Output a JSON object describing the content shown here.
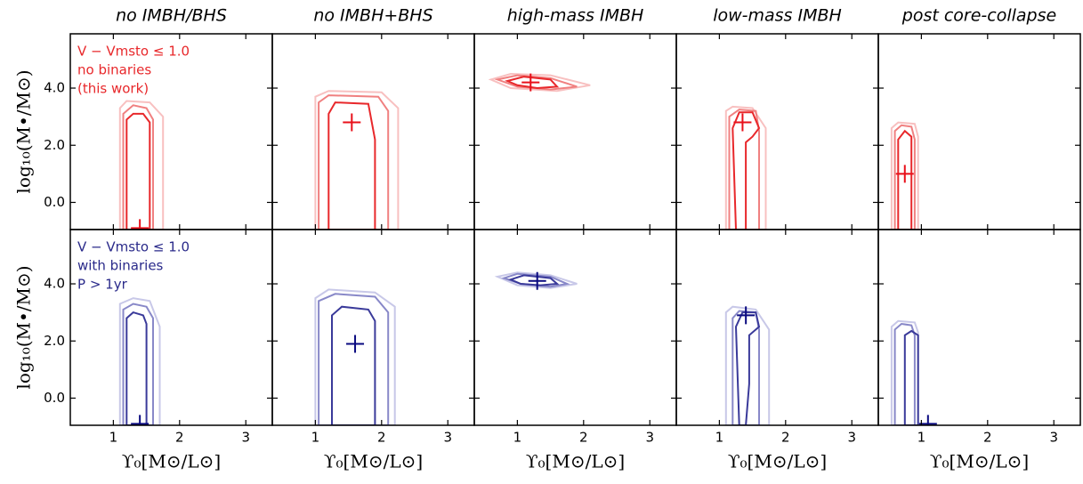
{
  "chart_data": [
    {
      "type": "contour",
      "title": "no IMBH/BHS",
      "ylabel": "log₁₀(M•/M⊙)",
      "annotations": [
        {
          "text": "V − Vmsto ≤ 1.0",
          "color": "#e8282b"
        },
        {
          "text": "no binaries",
          "color": "#e8282b"
        },
        {
          "text": "(this work)",
          "color": "#e8282b"
        }
      ],
      "xlim": [
        0.35,
        3.4
      ],
      "ylim": [
        -0.95,
        5.9
      ],
      "xticks": [
        1,
        2,
        3
      ],
      "yticks": [
        {
          "value": 4,
          "label": "4.0"
        },
        {
          "value": 2,
          "label": "2.0"
        },
        {
          "value": 0,
          "label": "0.0"
        }
      ],
      "contours": [
        {
          "color": "#f8c0c0",
          "x": [
            1.1,
            1.1,
            1.2,
            1.55,
            1.75,
            1.75
          ],
          "y": [
            -0.95,
            3.3,
            3.55,
            3.5,
            3.0,
            -0.95
          ]
        },
        {
          "color": "#f08080",
          "x": [
            1.15,
            1.15,
            1.3,
            1.5,
            1.6,
            1.6
          ],
          "y": [
            -0.95,
            3.1,
            3.4,
            3.3,
            2.9,
            -0.95
          ]
        },
        {
          "color": "#e8282b",
          "x": [
            1.2,
            1.2,
            1.3,
            1.45,
            1.55,
            1.55
          ],
          "y": [
            -0.95,
            2.9,
            3.1,
            3.1,
            2.8,
            -0.95
          ]
        }
      ],
      "marker": {
        "x": 1.4,
        "y": -0.9,
        "color": "#e8101a"
      }
    },
    {
      "type": "contour",
      "title": "no IMBH+BHS",
      "xlim": [
        0.35,
        3.4
      ],
      "ylim": [
        -0.95,
        5.9
      ],
      "xticks": [
        1,
        2,
        3
      ],
      "yticks": [
        4,
        2,
        0
      ],
      "contours": [
        {
          "color": "#f8c0c0",
          "x": [
            1.0,
            1.0,
            1.2,
            2.0,
            2.25,
            2.25
          ],
          "y": [
            -0.95,
            3.7,
            3.9,
            3.85,
            3.3,
            -0.95
          ]
        },
        {
          "color": "#f08080",
          "x": [
            1.05,
            1.05,
            1.2,
            1.95,
            2.1,
            2.1
          ],
          "y": [
            -0.95,
            3.5,
            3.75,
            3.7,
            3.2,
            -0.95
          ]
        },
        {
          "color": "#e8282b",
          "x": [
            1.2,
            1.2,
            1.3,
            1.8,
            1.9,
            1.9
          ],
          "y": [
            -0.95,
            3.1,
            3.5,
            3.45,
            2.2,
            -0.95
          ]
        }
      ],
      "marker": {
        "x": 1.55,
        "y": 2.8,
        "color": "#e8101a"
      }
    },
    {
      "type": "contour",
      "title": "high-mass IMBH",
      "xlim": [
        0.35,
        3.4
      ],
      "ylim": [
        -0.95,
        5.9
      ],
      "xticks": [
        1,
        2,
        3
      ],
      "yticks": [
        4,
        2,
        0
      ],
      "contours": [
        {
          "color": "#f8c0c0",
          "x": [
            0.6,
            0.9,
            1.5,
            2.1,
            1.6,
            0.9
          ],
          "y": [
            4.3,
            4.5,
            4.45,
            4.1,
            3.9,
            4.0
          ]
        },
        {
          "color": "#f08080",
          "x": [
            0.7,
            1.0,
            1.5,
            1.9,
            1.5,
            1.0
          ],
          "y": [
            4.3,
            4.45,
            4.35,
            4.05,
            3.95,
            4.05
          ]
        },
        {
          "color": "#e8282b",
          "x": [
            0.85,
            1.1,
            1.5,
            1.6,
            1.3,
            1.0
          ],
          "y": [
            4.25,
            4.4,
            4.3,
            4.05,
            4.0,
            4.1
          ]
        }
      ],
      "marker": {
        "x": 1.2,
        "y": 4.2,
        "color": "#e8101a"
      }
    },
    {
      "type": "contour",
      "title": "low-mass IMBH",
      "xlim": [
        0.35,
        3.4
      ],
      "ylim": [
        -0.95,
        5.9
      ],
      "xticks": [
        1,
        2,
        3
      ],
      "yticks": [
        4,
        2,
        0
      ],
      "contours": [
        {
          "color": "#f8c0c0",
          "x": [
            1.1,
            1.1,
            1.2,
            1.5,
            1.7,
            1.7
          ],
          "y": [
            -0.95,
            3.2,
            3.35,
            3.3,
            2.6,
            -0.95
          ]
        },
        {
          "color": "#f08080",
          "x": [
            1.15,
            1.15,
            1.3,
            1.55,
            1.6,
            1.6
          ],
          "y": [
            -0.95,
            3.0,
            3.25,
            3.2,
            2.5,
            -0.95
          ]
        },
        {
          "color": "#e8282b",
          "x": [
            1.25,
            1.2,
            1.3,
            1.5,
            1.6,
            1.5,
            1.4,
            1.4
          ],
          "y": [
            -0.95,
            2.6,
            3.15,
            3.15,
            2.6,
            2.3,
            2.1,
            -0.95
          ]
        }
      ],
      "marker": {
        "x": 1.35,
        "y": 2.8,
        "color": "#e8101a"
      }
    },
    {
      "type": "contour",
      "title": "post core-collapse",
      "xlim": [
        0.35,
        3.4
      ],
      "ylim": [
        -0.95,
        5.9
      ],
      "xticks": [
        1,
        2,
        3
      ],
      "yticks": [
        4,
        2,
        0
      ],
      "contours": [
        {
          "color": "#f8c0c0",
          "x": [
            0.55,
            0.55,
            0.65,
            0.9,
            0.95,
            0.95
          ],
          "y": [
            -0.95,
            2.6,
            2.8,
            2.75,
            2.3,
            -0.95
          ]
        },
        {
          "color": "#f08080",
          "x": [
            0.6,
            0.6,
            0.7,
            0.85,
            0.9,
            0.9
          ],
          "y": [
            -0.95,
            2.5,
            2.7,
            2.65,
            2.2,
            -0.95
          ]
        },
        {
          "color": "#e8282b",
          "x": [
            0.65,
            0.65,
            0.75,
            0.85,
            0.85
          ],
          "y": [
            -0.95,
            2.2,
            2.5,
            2.3,
            -0.95
          ]
        }
      ],
      "marker": {
        "x": 0.75,
        "y": 1.0,
        "color": "#e8101a"
      }
    },
    {
      "type": "contour",
      "ylabel": "log₁₀(M•/M⊙)",
      "xlabel": "ϒ₀[M⊙/L⊙]",
      "annotations": [
        {
          "text": "V − Vmsto ≤ 1.0",
          "color": "#2a2a8a"
        },
        {
          "text": "with binaries",
          "color": "#2a2a8a"
        },
        {
          "text": "P > 1yr",
          "color": "#2a2a8a"
        }
      ],
      "xlim": [
        0.35,
        3.4
      ],
      "ylim": [
        -0.95,
        5.9
      ],
      "xticks": [
        1,
        2,
        3
      ],
      "yticks": [
        {
          "value": 4,
          "label": "4.0"
        },
        {
          "value": 2,
          "label": "2.0"
        },
        {
          "value": 0,
          "label": "0.0"
        }
      ],
      "contours": [
        {
          "color": "#c8c8e8",
          "x": [
            1.1,
            1.1,
            1.3,
            1.55,
            1.7,
            1.7
          ],
          "y": [
            -0.95,
            3.3,
            3.5,
            3.4,
            2.5,
            -0.95
          ]
        },
        {
          "color": "#8888c8",
          "x": [
            1.15,
            1.15,
            1.3,
            1.5,
            1.6,
            1.6
          ],
          "y": [
            -0.95,
            3.1,
            3.3,
            3.2,
            2.8,
            -0.95
          ]
        },
        {
          "color": "#3a3a9a",
          "x": [
            1.2,
            1.2,
            1.3,
            1.45,
            1.5,
            1.5
          ],
          "y": [
            -0.95,
            2.8,
            3.0,
            2.9,
            2.6,
            -0.95
          ]
        }
      ],
      "marker": {
        "x": 1.4,
        "y": -0.9,
        "color": "#0a0a80"
      }
    },
    {
      "type": "contour",
      "xlabel": "ϒ₀[M⊙/L⊙]",
      "xlim": [
        0.35,
        3.4
      ],
      "ylim": [
        -0.95,
        5.9
      ],
      "xticks": [
        1,
        2,
        3
      ],
      "yticks": [
        4,
        2,
        0
      ],
      "contours": [
        {
          "color": "#c8c8e8",
          "x": [
            1.0,
            1.0,
            1.2,
            1.9,
            2.2,
            2.2
          ],
          "y": [
            -0.95,
            3.5,
            3.8,
            3.7,
            3.2,
            -0.95
          ]
        },
        {
          "color": "#8888c8",
          "x": [
            1.05,
            1.05,
            1.3,
            1.9,
            2.1,
            2.1
          ],
          "y": [
            -0.95,
            3.4,
            3.65,
            3.55,
            3.0,
            -0.95
          ]
        },
        {
          "color": "#3a3a9a",
          "x": [
            1.25,
            1.25,
            1.4,
            1.8,
            1.9,
            1.9
          ],
          "y": [
            -0.95,
            2.9,
            3.2,
            3.1,
            2.7,
            -0.95
          ]
        }
      ],
      "marker": {
        "x": 1.6,
        "y": 1.9,
        "color": "#0a0a80"
      }
    },
    {
      "type": "contour",
      "xlabel": "ϒ₀[M⊙/L⊙]",
      "xlim": [
        0.35,
        3.4
      ],
      "ylim": [
        -0.95,
        5.9
      ],
      "xticks": [
        1,
        2,
        3
      ],
      "yticks": [
        4,
        2,
        0
      ],
      "contours": [
        {
          "color": "#c8c8e8",
          "x": [
            0.7,
            1.0,
            1.5,
            1.9,
            1.5,
            1.0
          ],
          "y": [
            4.25,
            4.4,
            4.3,
            4.0,
            3.85,
            3.95
          ]
        },
        {
          "color": "#8888c8",
          "x": [
            0.8,
            1.0,
            1.5,
            1.75,
            1.5,
            1.05
          ],
          "y": [
            4.2,
            4.35,
            4.25,
            4.0,
            3.9,
            4.0
          ]
        },
        {
          "color": "#3a3a9a",
          "x": [
            0.9,
            1.1,
            1.5,
            1.6,
            1.35,
            1.05
          ],
          "y": [
            4.15,
            4.3,
            4.2,
            4.0,
            3.95,
            4.0
          ]
        }
      ],
      "marker": {
        "x": 1.3,
        "y": 4.1,
        "color": "#0a0a80"
      }
    },
    {
      "type": "contour",
      "xlabel": "ϒ₀[M⊙/L⊙]",
      "xlim": [
        0.35,
        3.4
      ],
      "ylim": [
        -0.95,
        5.9
      ],
      "xticks": [
        1,
        2,
        3
      ],
      "yticks": [
        4,
        2,
        0
      ],
      "contours": [
        {
          "color": "#c8c8e8",
          "x": [
            1.1,
            1.1,
            1.2,
            1.55,
            1.75,
            1.75
          ],
          "y": [
            -0.95,
            3.0,
            3.2,
            3.1,
            2.4,
            -0.95
          ]
        },
        {
          "color": "#8888c8",
          "x": [
            1.2,
            1.2,
            1.3,
            1.55,
            1.6,
            1.6
          ],
          "y": [
            -0.95,
            2.8,
            3.05,
            3.0,
            2.4,
            -0.95
          ]
        },
        {
          "color": "#3a3a9a",
          "x": [
            1.3,
            1.25,
            1.35,
            1.55,
            1.6,
            1.45,
            1.45,
            1.4
          ],
          "y": [
            -0.95,
            2.5,
            3.0,
            3.0,
            2.5,
            2.2,
            0.5,
            -0.95
          ]
        }
      ],
      "marker": {
        "x": 1.4,
        "y": 2.9,
        "color": "#0a0a80"
      }
    },
    {
      "type": "contour",
      "xlabel": "ϒ₀[M⊙/L⊙]",
      "xlim": [
        0.35,
        3.4
      ],
      "ylim": [
        -0.95,
        5.9
      ],
      "xticks": [
        1,
        2,
        3
      ],
      "yticks": [
        4,
        2,
        0
      ],
      "contours": [
        {
          "color": "#c8c8e8",
          "x": [
            0.55,
            0.55,
            0.65,
            0.9,
            0.95,
            0.95
          ],
          "y": [
            -0.95,
            2.5,
            2.7,
            2.65,
            2.3,
            -0.95
          ]
        },
        {
          "color": "#8888c8",
          "x": [
            0.6,
            0.6,
            0.7,
            0.85,
            0.9,
            0.9
          ],
          "y": [
            -0.95,
            2.4,
            2.6,
            2.55,
            2.2,
            -0.95
          ]
        },
        {
          "color": "#3a3a9a",
          "x": [
            0.75,
            0.75,
            0.85,
            0.95,
            0.95
          ],
          "y": [
            -0.95,
            2.2,
            2.35,
            2.2,
            -0.95
          ]
        }
      ],
      "marker": {
        "x": 1.1,
        "y": -0.9,
        "color": "#0a0a80"
      }
    }
  ]
}
